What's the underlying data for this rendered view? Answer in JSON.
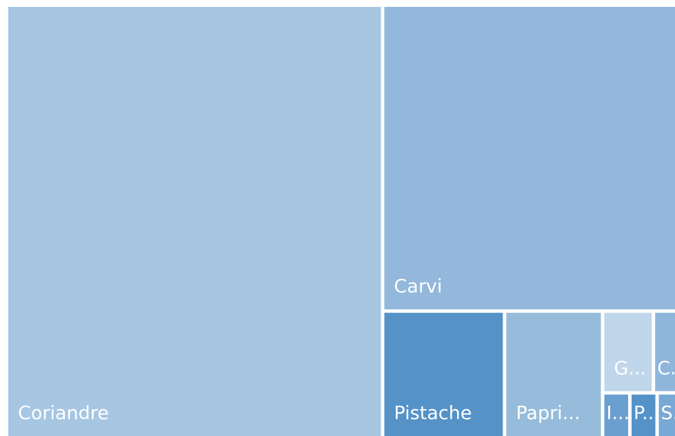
{
  "chart_data": {
    "type": "treemap",
    "categories": [
      "Coriandre",
      "Carvi",
      "Pistache",
      "Papri...",
      "G...",
      "C...",
      "I...",
      "P...",
      "S..."
    ],
    "values": [
      3327,
      1840,
      316,
      254,
      85,
      39,
      25,
      25,
      18
    ],
    "colors": [
      "#a6c6e2",
      "#93b8dc",
      "#5592c8",
      "#97bcdb",
      "#c0d6ea",
      "#8fb6da",
      "#6a9fd0",
      "#5592c8",
      "#78a8d5"
    ]
  }
}
